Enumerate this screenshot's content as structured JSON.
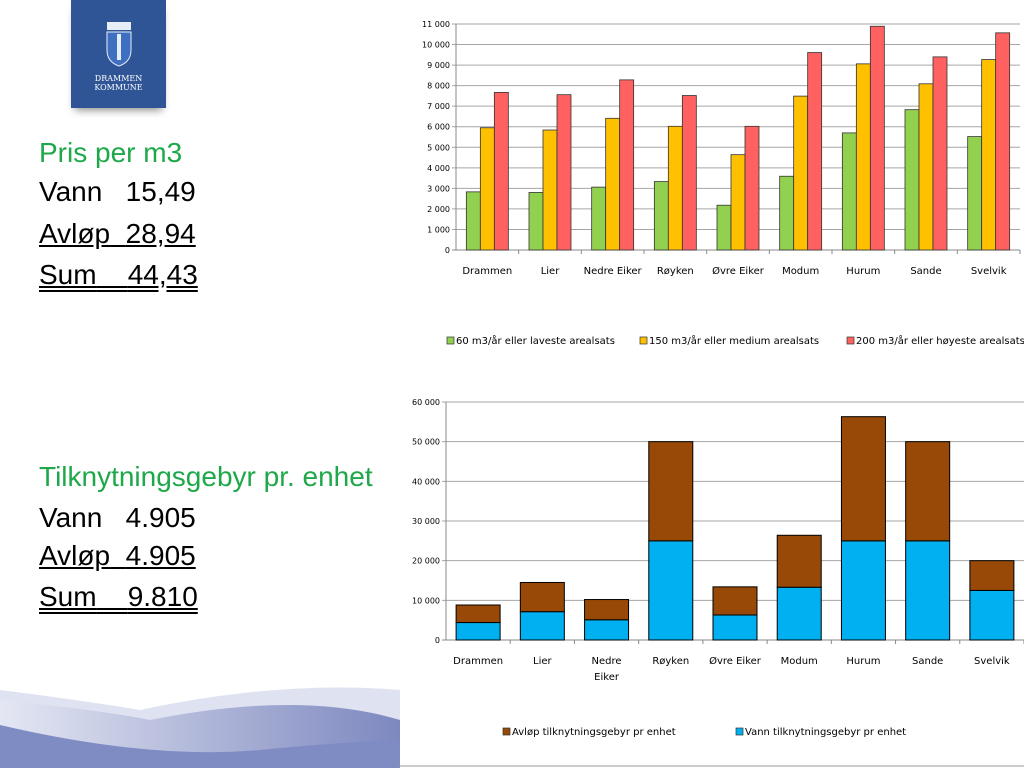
{
  "logo": {
    "line1": "DRAMMEN",
    "line2": "KOMMUNE"
  },
  "price": {
    "heading": "Pris per m3",
    "rows": [
      {
        "label": "Vann",
        "value": "15,49"
      },
      {
        "label": "Avløp",
        "value": "28,94"
      },
      {
        "label": "Sum",
        "value": "44,43"
      }
    ]
  },
  "connection": {
    "heading": "Tilknytningsgebyr pr. enhet",
    "rows": [
      {
        "label": "Vann",
        "value": "4.905"
      },
      {
        "label": "Avløp",
        "value": "4.905"
      },
      {
        "label": "Sum",
        "value": "9.810"
      }
    ]
  },
  "chart_data": [
    {
      "type": "bar",
      "title": "",
      "categories": [
        "Drammen",
        "Lier",
        "Nedre Eiker",
        "Røyken",
        "Øvre Eiker",
        "Modum",
        "Hurum",
        "Sande",
        "Svelvik"
      ],
      "series": [
        {
          "name": "60 m3/år eller laveste arealsats",
          "color": "#92d050",
          "values": [
            2830,
            2800,
            3060,
            3330,
            2180,
            3590,
            5700,
            6830,
            5520
          ]
        },
        {
          "name": "150 m3/år eller medium  arealsats",
          "color": "#ffc000",
          "values": [
            5950,
            5840,
            6410,
            6020,
            4640,
            7490,
            9060,
            8090,
            9270
          ]
        },
        {
          "name": "200 m3/år eller høyeste arealsats",
          "color": "#ff6161",
          "values": [
            7670,
            7560,
            8280,
            7520,
            6020,
            9610,
            10890,
            9400,
            10570
          ]
        }
      ],
      "yticks": [
        "0",
        "1 000",
        "2 000",
        "3 000",
        "4 000",
        "5 000",
        "6 000",
        "7 000",
        "8 000",
        "9 000",
        "10 000",
        "11 000"
      ],
      "ylim": [
        0,
        11000
      ],
      "grid": true,
      "legend": "bottom"
    },
    {
      "type": "bar",
      "stacked": true,
      "title": "",
      "categories": [
        "Drammen",
        "Lier",
        "Nedre Eiker",
        "Røyken",
        "Øvre Eiker",
        "Modum",
        "Hurum",
        "Sande",
        "Svelvik"
      ],
      "series": [
        {
          "name": "Vann tilknytningsgebyr pr enhet",
          "color": "#00b0f0",
          "values": [
            4400,
            7140,
            5100,
            25000,
            6300,
            13300,
            25000,
            25000,
            12500
          ]
        },
        {
          "name": "Avløp tilknytningsgebyr pr enhet",
          "color": "#984807",
          "values": [
            4420,
            7360,
            5100,
            25000,
            7100,
            13100,
            31300,
            25000,
            7500
          ]
        }
      ],
      "legend_order": [
        1,
        0
      ],
      "yticks": [
        "0",
        "10 000",
        "20 000",
        "30 000",
        "40 000",
        "50 000",
        "60 000"
      ],
      "ylim": [
        0,
        60000
      ],
      "grid": true,
      "legend": "bottom"
    }
  ]
}
